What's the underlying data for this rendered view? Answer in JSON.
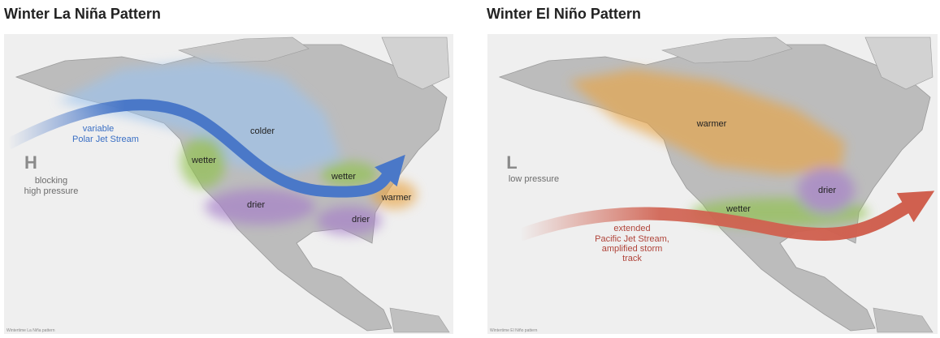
{
  "panels": [
    {
      "title": "Winter La Niña Pattern",
      "labels": {
        "jet": [
          "variable",
          "Polar Jet Stream"
        ],
        "symbol": "H",
        "pressure": [
          "blocking",
          "high pressure"
        ],
        "colder": "colder",
        "wetter_west": "wetter",
        "wetter_east": "wetter",
        "drier_west": "drier",
        "warmer": "warmer",
        "drier_east": "drier"
      },
      "credit": "Wintertime La Niña pattern"
    },
    {
      "title": "Winter El Niño Pattern",
      "labels": {
        "warmer": "warmer",
        "symbol": "L",
        "pressure": [
          "low pressure"
        ],
        "drier": "drier",
        "wetter": "wetter",
        "jet": [
          "extended",
          "Pacific Jet Stream,",
          "amplified storm",
          "track"
        ]
      },
      "credit": "Wintertime El Niño pattern"
    }
  ]
}
